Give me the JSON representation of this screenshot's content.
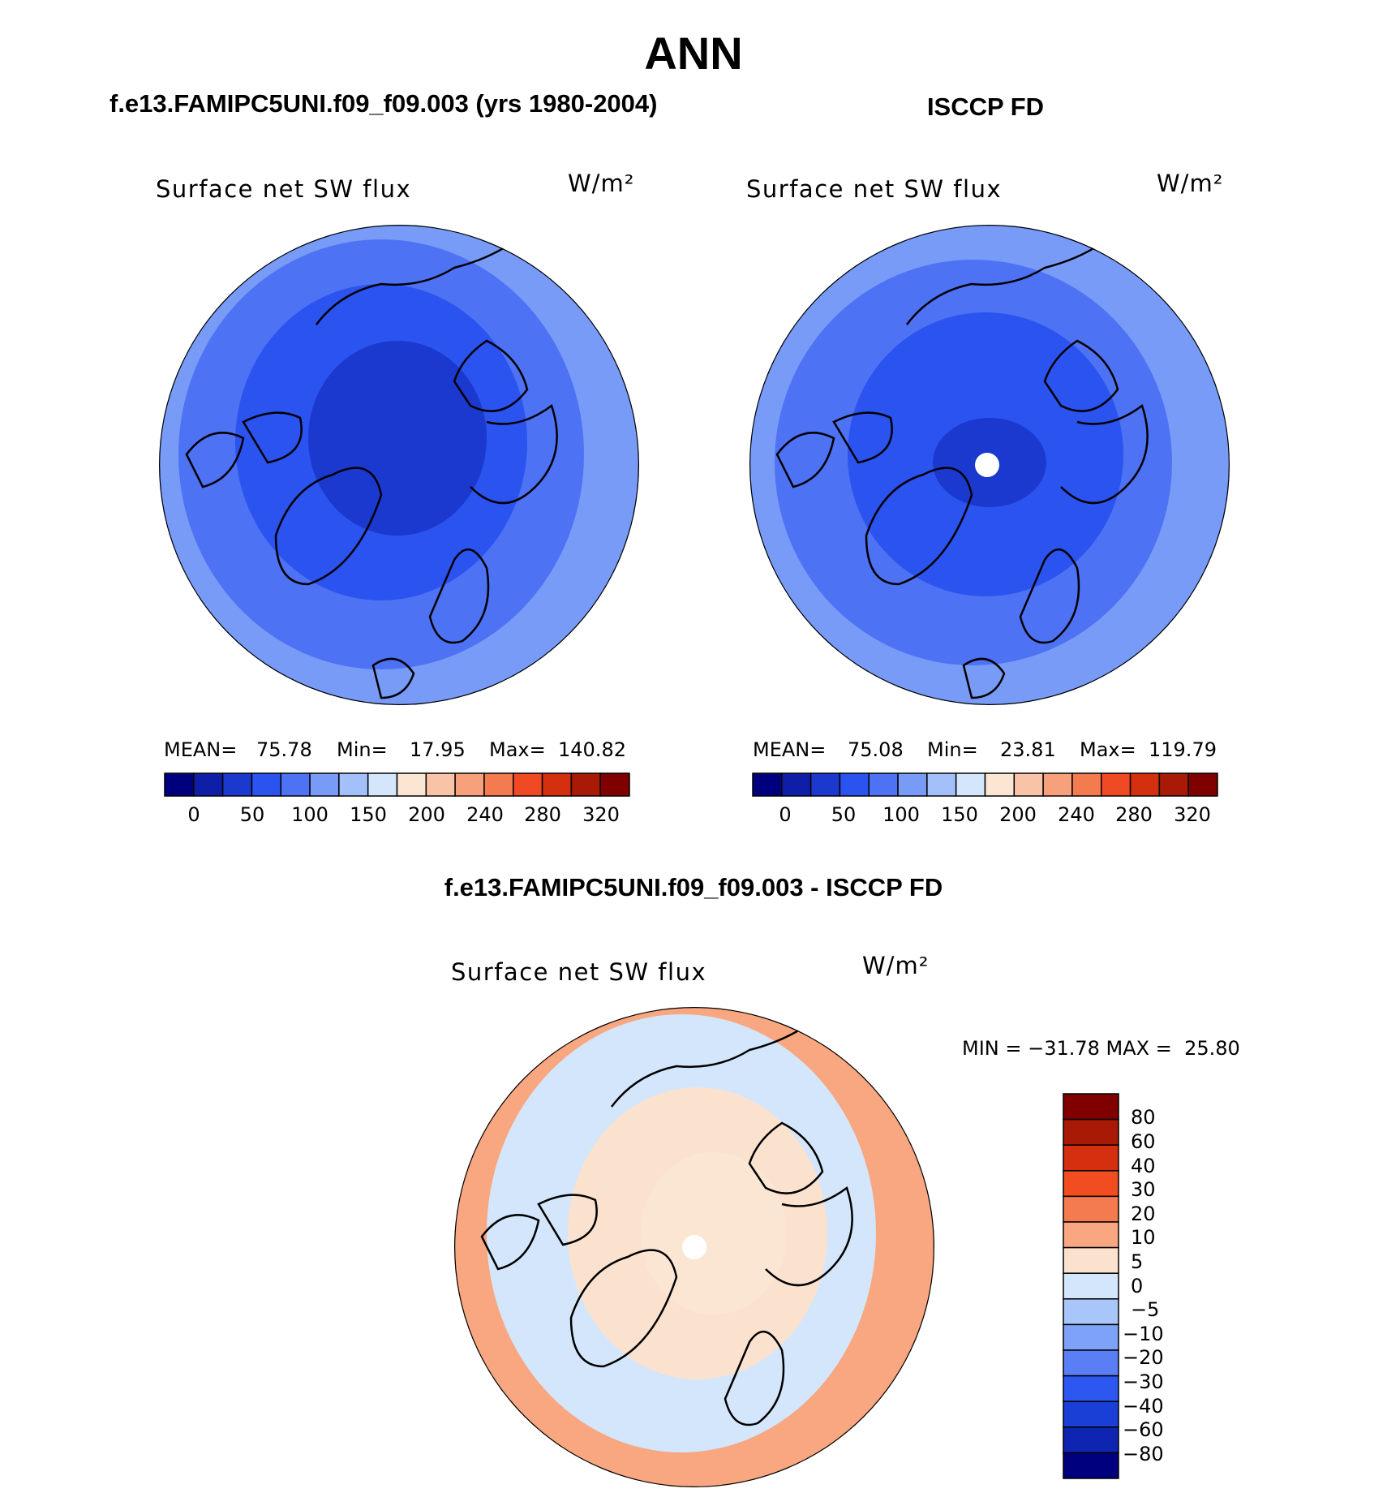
{
  "chart_data": {
    "type": "heatmap",
    "title": "ANN",
    "projection": "North polar stereographic",
    "panels": [
      {
        "id": "model",
        "case_title": "f.e13.FAMIPC5UNI.f09_f09.003 (yrs 1980-2004)",
        "variable": "Surface net SW flux",
        "units": "W/m²",
        "stats": {
          "mean_label": "MEAN=",
          "mean": "75.78",
          "min_label": "Min=",
          "min": "17.95",
          "max_label": "Max=",
          "max": "140.82"
        },
        "colorbar_ticks": [
          "0",
          "50",
          "100",
          "150",
          "200",
          "240",
          "280",
          "320"
        ],
        "colors": [
          "#00007f",
          "#0e1ea6",
          "#1c39cf",
          "#2b53ef",
          "#4e72f4",
          "#789bf8",
          "#a4c0fa",
          "#d3e6fb",
          "#fbe6d4",
          "#f9c3a7",
          "#f6a07c",
          "#f47a4f",
          "#ef4a23",
          "#d42f0f",
          "#a81a06",
          "#800000"
        ]
      },
      {
        "id": "obs",
        "case_title": "ISCCP FD",
        "variable": "Surface net SW flux",
        "units": "W/m²",
        "stats": {
          "mean_label": "MEAN=",
          "mean": "75.08",
          "min_label": "Min=",
          "min": "23.81",
          "max_label": "Max=",
          "max": "119.79"
        },
        "colorbar_ticks": [
          "0",
          "50",
          "100",
          "150",
          "200",
          "240",
          "280",
          "320"
        ],
        "colors": [
          "#00007f",
          "#0e1ea6",
          "#1c39cf",
          "#2b53ef",
          "#4e72f4",
          "#789bf8",
          "#a4c0fa",
          "#d3e6fb",
          "#fbe6d4",
          "#f9c3a7",
          "#f6a07c",
          "#f47a4f",
          "#ef4a23",
          "#d42f0f",
          "#a81a06",
          "#800000"
        ]
      },
      {
        "id": "diff",
        "case_title": "f.e13.FAMIPC5UNI.f09_f09.003 - ISCCP FD",
        "variable": "Surface net SW flux",
        "units": "W/m²",
        "minmax_text": "MIN = −31.78 MAX =  25.80",
        "colorbar_ticks": [
          "80",
          "60",
          "40",
          "30",
          "20",
          "10",
          "5",
          "0",
          "−5",
          "−10",
          "−20",
          "−30",
          "−40",
          "−60",
          "−80"
        ],
        "colors": [
          "#800000",
          "#a81a06",
          "#d42f0f",
          "#f24d20",
          "#f47a4f",
          "#f8a781",
          "#fbe2cf",
          "#d3e6fb",
          "#a9c6fa",
          "#7ea2f8",
          "#5a7ef5",
          "#2c57f0",
          "#1a3fd6",
          "#0e25b2",
          "#00007f"
        ]
      }
    ]
  },
  "map_colors": {
    "model": {
      "outer": "#789bf8",
      "ring1": "#4e72f4",
      "ring2": "#2b53ef",
      "core": "#1c39cf"
    },
    "obs": {
      "outer": "#789bf8",
      "ring1": "#4e72f4",
      "ring2": "#2b53ef",
      "core": "#1c39cf"
    },
    "diff": {
      "outer": "#f8a781",
      "ring1": "#d3e6fb",
      "ring2": "#fbe2cf",
      "core": "#fbe6d4"
    }
  }
}
